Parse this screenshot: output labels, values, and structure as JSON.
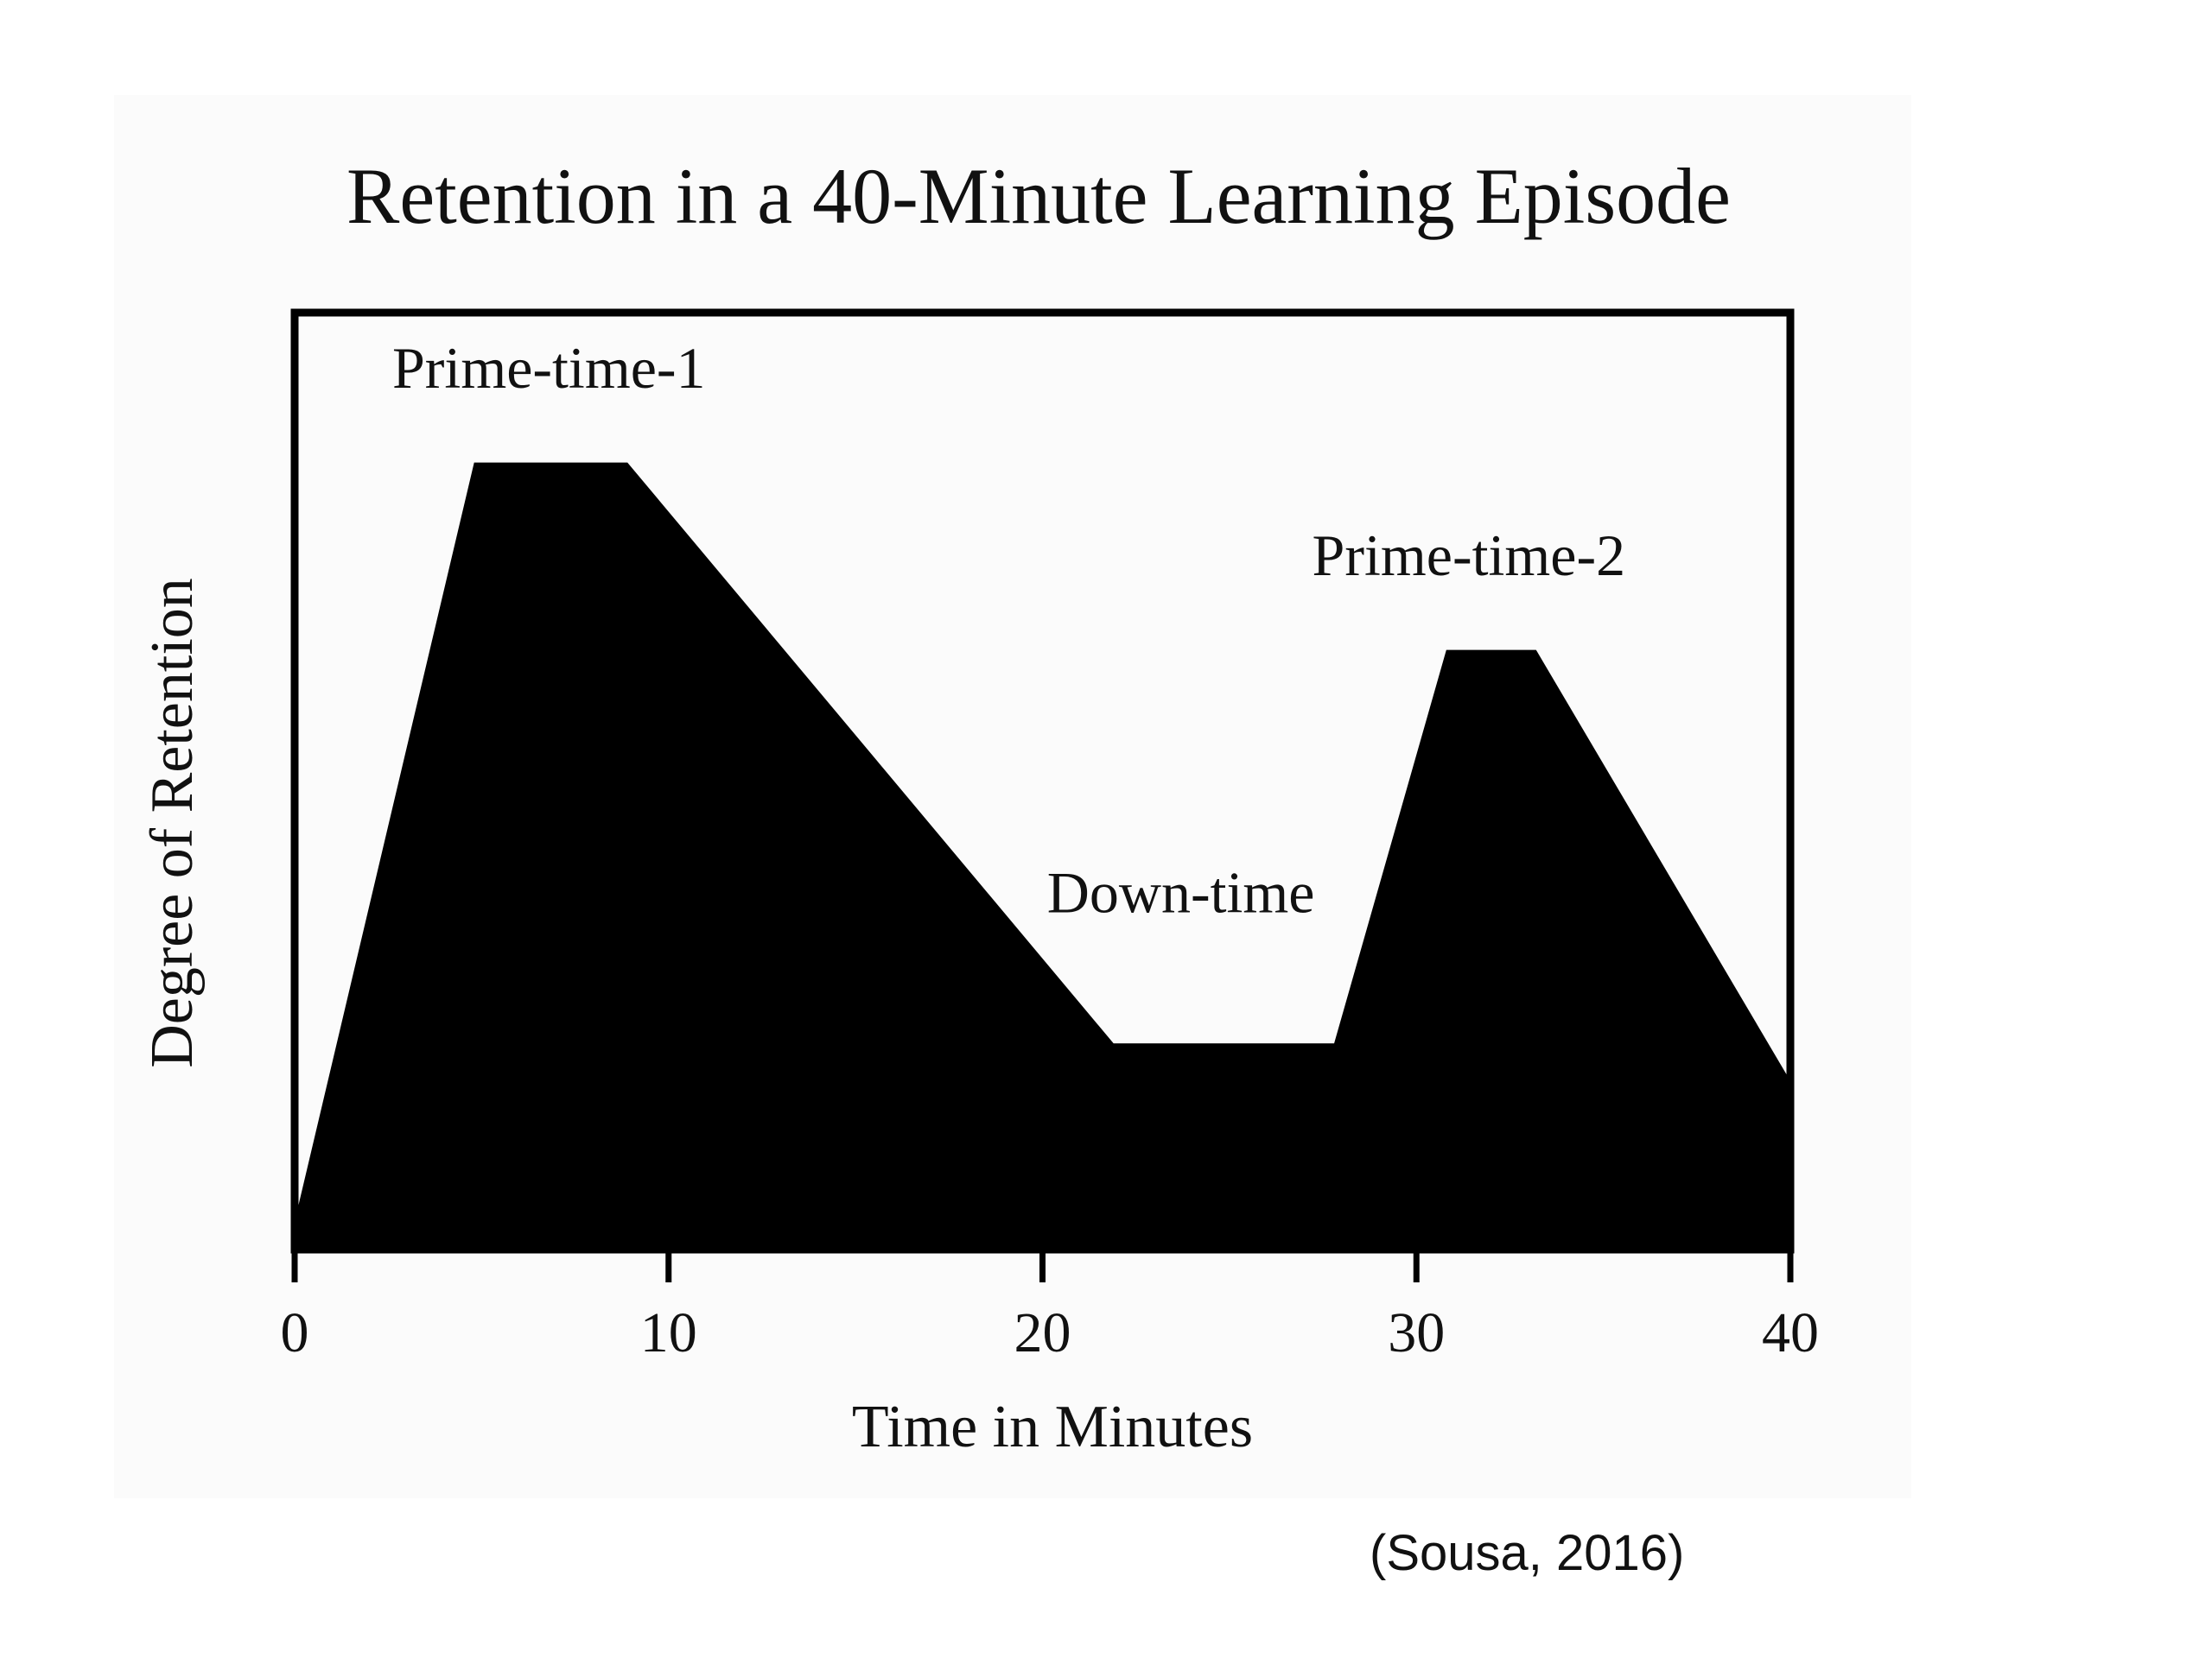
{
  "chart_data": {
    "type": "area",
    "title": "Retention in a 40-Minute Learning Episode",
    "xlabel": "Time in Minutes",
    "ylabel": "Degree of Retention",
    "xlim": [
      0,
      40
    ],
    "ylim": [
      0,
      100
    ],
    "x_ticks": [
      0,
      10,
      20,
      30,
      40
    ],
    "y_ticks_shown": false,
    "grid": false,
    "fill_color": "#000000",
    "series": [
      {
        "x": [
          0,
          4.8,
          8.9,
          21.9,
          27.8,
          30.8,
          33.2,
          40
        ],
        "values": [
          3,
          84,
          84,
          22,
          22,
          64,
          64,
          18
        ]
      }
    ],
    "annotations": [
      {
        "text": "Prime-time-1",
        "x": 6.8,
        "y": 92
      },
      {
        "text": "Down-time",
        "x": 23.7,
        "y": 36
      },
      {
        "text": "Prime-time-2",
        "x": 31.4,
        "y": 72
      }
    ]
  },
  "source_citation": "(Sousa, 2016)"
}
